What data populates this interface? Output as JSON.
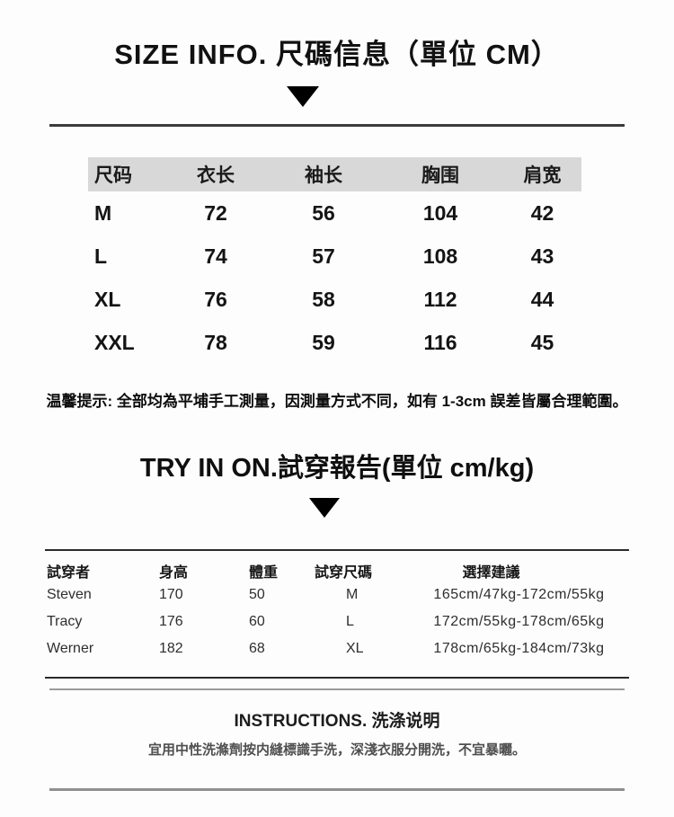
{
  "size_section": {
    "title": "SIZE INFO. 尺碼信息（單位 CM）",
    "table": {
      "headers": [
        "尺码",
        "衣长",
        "袖长",
        "胸围",
        "肩宽"
      ],
      "rows": [
        [
          "M",
          "72",
          "56",
          "104",
          "42"
        ],
        [
          "L",
          "74",
          "57",
          "108",
          "43"
        ],
        [
          "XL",
          "76",
          "58",
          "112",
          "44"
        ],
        [
          "XXL",
          "78",
          "59",
          "116",
          "45"
        ]
      ]
    },
    "tip": "温馨提示: 全部均為平埔手工測量，因測量方式不同，如有 1-3cm 誤差皆屬合理範圍。"
  },
  "tryon_section": {
    "title": "TRY IN ON.試穿報告(單位 cm/kg)",
    "table": {
      "headers": [
        "試穿者",
        "身高",
        "體重",
        "試穿尺碼",
        "選擇建議"
      ],
      "rows": [
        [
          "Steven",
          "170",
          "50",
          "M",
          "165cm/47kg-172cm/55kg"
        ],
        [
          "Tracy",
          "176",
          "60",
          "L",
          "172cm/55kg-178cm/65kg"
        ],
        [
          "Werner",
          "182",
          "68",
          "XL",
          "178cm/65kg-184cm/73kg"
        ]
      ]
    }
  },
  "instructions_section": {
    "title": "INSTRUCTIONS. 洗涤说明",
    "text": "宜用中性洗滌劑按内縫標識手洗，深淺衣服分開洗，不宜暴曬。"
  },
  "colors": {
    "header_band": "#d8d8d8",
    "rule_dark": "#3c3c3c",
    "rule_gray": "#9b9b9b",
    "text": "#151515"
  }
}
